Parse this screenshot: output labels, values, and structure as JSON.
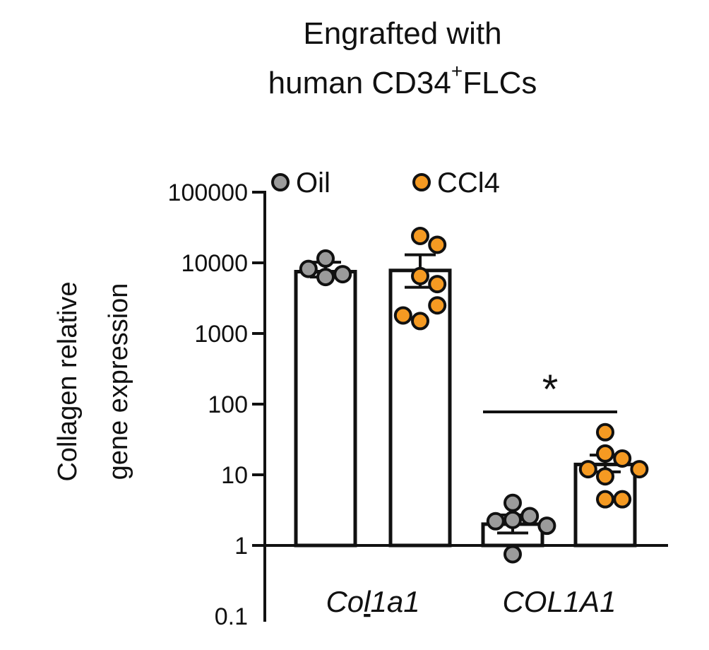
{
  "chart_data": {
    "type": "bar",
    "title_line1": "Engrafted with",
    "title_line2_pre": "human CD34",
    "title_sup": "+",
    "title_line2_post": "FLCs",
    "ylabel_line1": "Collagen relative",
    "ylabel_line2": "gene expression",
    "y_scale": "log",
    "ylim": [
      0.1,
      100000
    ],
    "y_ticks": [
      {
        "value": 100000,
        "label": "100000"
      },
      {
        "value": 10000,
        "label": "10000"
      },
      {
        "value": 1000,
        "label": "1000"
      },
      {
        "value": 100,
        "label": "100"
      },
      {
        "value": 10,
        "label": "10"
      },
      {
        "value": 1,
        "label": "1"
      },
      {
        "value": 0.1,
        "label": "0.1"
      }
    ],
    "categories": [
      {
        "pre": "Co",
        "underlined": "l",
        "post": "1a1"
      },
      {
        "pre": "COL1A1",
        "underlined": "",
        "post": ""
      }
    ],
    "series": [
      {
        "name": "Oil",
        "color": "#9b9b9b",
        "bars": [
          {
            "mean": 7500,
            "sem_low": 6300,
            "sem_high": 10200,
            "points": [
              11500,
              6900,
              6300,
              8200
            ]
          },
          {
            "mean": 2.0,
            "sem_low": 1.5,
            "sem_high": 2.7,
            "points": [
              4.0,
              2.3,
              2.6,
              2.2,
              1.9,
              0.75
            ]
          }
        ]
      },
      {
        "name": "CCl4",
        "color": "#f59a22",
        "bars": [
          {
            "mean": 7800,
            "sem_low": 4500,
            "sem_high": 13000,
            "points": [
              24000,
              18000,
              6500,
              5000,
              1500,
              2500,
              1800
            ]
          },
          {
            "mean": 14,
            "sem_low": 11,
            "sem_high": 19,
            "points": [
              40,
              20,
              17,
              12,
              12,
              9.5,
              4.5,
              4.5
            ]
          }
        ]
      }
    ],
    "significance": {
      "label": "*",
      "category_index": 1
    },
    "legend_position": "top"
  }
}
